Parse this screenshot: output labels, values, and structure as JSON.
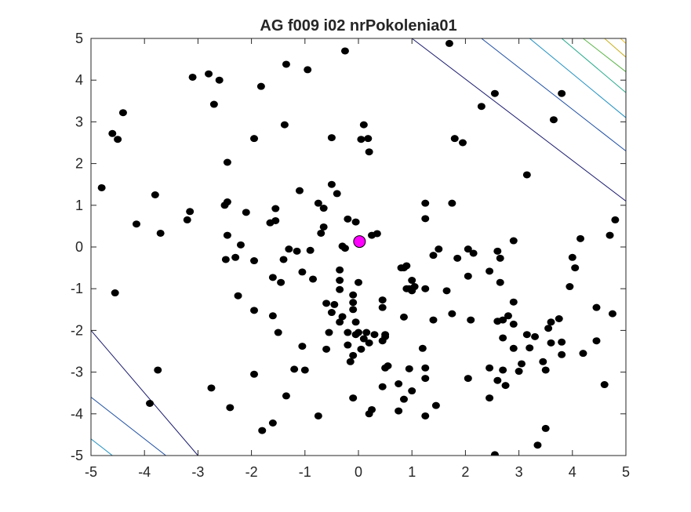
{
  "chart_data": {
    "type": "scatter",
    "title": "AG f009 i02 nrPokolenia01",
    "xlabel": "",
    "ylabel": "",
    "xlim": [
      -5,
      5
    ],
    "ylim": [
      -5,
      5
    ],
    "x_ticks": [
      "-5",
      "-4",
      "-3",
      "-2",
      "-1",
      "0",
      "1",
      "2",
      "3",
      "4",
      "5"
    ],
    "y_ticks": [
      "-5",
      "-4",
      "-3",
      "-2",
      "-1",
      "0",
      "1",
      "2",
      "3",
      "4",
      "5"
    ],
    "grid": false,
    "colors": {
      "population": "#000000",
      "best": "#ff00ff",
      "contours": [
        "#1a1a6e",
        "#1f4fa3",
        "#1f8fc0",
        "#27a98a",
        "#5cb54a",
        "#c9b020",
        "#f0c020"
      ]
    },
    "contour_levels": [
      {
        "color": "#1a1a6e",
        "segments": [
          [
            [
              -5,
              -2
            ],
            [
              -3,
              -5
            ]
          ],
          [
            [
              1,
              5
            ],
            [
              5,
              1.1
            ]
          ]
        ]
      },
      {
        "color": "#1f4fa3",
        "segments": [
          [
            [
              -5,
              -3.6
            ],
            [
              -3.4,
              -5.2
            ]
          ],
          [
            [
              2.3,
              5
            ],
            [
              5,
              2.3
            ]
          ]
        ]
      },
      {
        "color": "#1f8fc0",
        "segments": [
          [
            [
              -5,
              -4.6
            ],
            [
              -4.4,
              -5.2
            ]
          ],
          [
            [
              3.2,
              5
            ],
            [
              5,
              3.1
            ]
          ]
        ]
      },
      {
        "color": "#27a98a",
        "segments": [
          [
            [
              3.8,
              5
            ],
            [
              5,
              3.7
            ]
          ]
        ]
      },
      {
        "color": "#5cb54a",
        "segments": [
          [
            [
              4.2,
              5
            ],
            [
              5,
              4.2
            ]
          ]
        ]
      },
      {
        "color": "#c9b020",
        "segments": [
          [
            [
              4.6,
              5
            ],
            [
              5,
              4.55
            ]
          ]
        ]
      },
      {
        "color": "#f0c020",
        "segments": [
          [
            [
              4.9,
              5
            ],
            [
              5,
              4.88
            ]
          ]
        ]
      }
    ],
    "best": {
      "x": 0.02,
      "y": 0.13
    },
    "points": [
      [
        -4.6,
        2.72
      ],
      [
        -4.4,
        3.22
      ],
      [
        -4.5,
        2.58
      ],
      [
        -4.8,
        1.42
      ],
      [
        -4.15,
        0.55
      ],
      [
        -4.55,
        -1.1
      ],
      [
        -3.8,
        1.25
      ],
      [
        -3.7,
        0.33
      ],
      [
        -3.75,
        -2.95
      ],
      [
        -3.9,
        -3.75
      ],
      [
        -3.1,
        4.07
      ],
      [
        -2.8,
        4.15
      ],
      [
        -2.6,
        4.0
      ],
      [
        -2.7,
        3.42
      ],
      [
        -3.15,
        0.85
      ],
      [
        -3.2,
        0.65
      ],
      [
        -2.45,
        2.03
      ],
      [
        -2.45,
        1.08
      ],
      [
        -2.5,
        1.0
      ],
      [
        -2.45,
        0.28
      ],
      [
        -2.2,
        0.05
      ],
      [
        -2.48,
        -0.3
      ],
      [
        -2.3,
        -0.25
      ],
      [
        -2.25,
        -1.17
      ],
      [
        -2.75,
        -3.38
      ],
      [
        -2.4,
        -3.85
      ],
      [
        -1.95,
        2.6
      ],
      [
        -1.82,
        3.85
      ],
      [
        -1.35,
        4.38
      ],
      [
        -0.95,
        4.25
      ],
      [
        -0.25,
        4.7
      ],
      [
        -1.38,
        2.93
      ],
      [
        -2.1,
        0.83
      ],
      [
        -1.55,
        0.92
      ],
      [
        -1.55,
        0.63
      ],
      [
        -1.65,
        0.58
      ],
      [
        -1.95,
        -0.33
      ],
      [
        -1.3,
        -0.05
      ],
      [
        -1.4,
        -0.3
      ],
      [
        -1.15,
        -0.1
      ],
      [
        -0.9,
        -0.08
      ],
      [
        -1.05,
        -0.6
      ],
      [
        -1.6,
        -0.73
      ],
      [
        -1.45,
        -0.85
      ],
      [
        -0.85,
        -0.77
      ],
      [
        -1.95,
        -1.52
      ],
      [
        -1.6,
        -1.65
      ],
      [
        -1.5,
        -2.05
      ],
      [
        -1.05,
        -2.38
      ],
      [
        -1.2,
        -2.93
      ],
      [
        -1.0,
        -2.95
      ],
      [
        -1.95,
        -3.05
      ],
      [
        -1.35,
        -3.57
      ],
      [
        -1.6,
        -4.22
      ],
      [
        -1.8,
        -4.4
      ],
      [
        -0.75,
        -4.05
      ],
      [
        -1.1,
        1.35
      ],
      [
        -0.5,
        1.5
      ],
      [
        -0.4,
        1.28
      ],
      [
        -0.75,
        1.05
      ],
      [
        -0.65,
        0.93
      ],
      [
        -0.65,
        0.48
      ],
      [
        -0.7,
        0.33
      ],
      [
        -0.2,
        0.67
      ],
      [
        -0.3,
        0.02
      ],
      [
        -0.25,
        -0.03
      ],
      [
        -0.35,
        -0.55
      ],
      [
        -0.35,
        -0.8
      ],
      [
        -0.35,
        -1.02
      ],
      [
        -0.6,
        -1.35
      ],
      [
        -0.45,
        -1.38
      ],
      [
        -0.5,
        -1.57
      ],
      [
        -0.35,
        -1.8
      ],
      [
        -0.3,
        -1.67
      ],
      [
        -0.1,
        -1.33
      ],
      [
        -0.1,
        -1.15
      ],
      [
        -0.1,
        -1.5
      ],
      [
        -0.05,
        -1.8
      ],
      [
        -0.05,
        -2.1
      ],
      [
        -0.55,
        -2.05
      ],
      [
        -0.6,
        -2.45
      ],
      [
        -0.2,
        -2.05
      ],
      [
        0.0,
        -2.05
      ],
      [
        0.15,
        -2.05
      ],
      [
        0.1,
        -2.2
      ],
      [
        0.2,
        -2.3
      ],
      [
        0.3,
        -2.1
      ],
      [
        0.45,
        -2.25
      ],
      [
        0.5,
        -2.1
      ],
      [
        0.05,
        -2.45
      ],
      [
        -0.1,
        -2.6
      ],
      [
        -0.15,
        -2.75
      ],
      [
        0.0,
        -0.85
      ],
      [
        -0.5,
        2.62
      ],
      [
        0.1,
        2.93
      ],
      [
        0.05,
        2.58
      ],
      [
        0.18,
        2.6
      ],
      [
        0.2,
        2.28
      ],
      [
        -0.05,
        0.6
      ],
      [
        0.25,
        0.28
      ],
      [
        0.35,
        0.32
      ],
      [
        0.45,
        -1.27
      ],
      [
        0.45,
        -1.45
      ],
      [
        0.55,
        -2.85
      ],
      [
        0.5,
        -2.9
      ],
      [
        0.45,
        -3.35
      ],
      [
        0.25,
        -3.9
      ],
      [
        0.2,
        -4.0
      ],
      [
        -0.1,
        -3.62
      ],
      [
        0.8,
        -0.5
      ],
      [
        0.9,
        -0.45
      ],
      [
        1.0,
        -0.8
      ],
      [
        0.95,
        -1.0
      ],
      [
        1.0,
        -1.05
      ],
      [
        0.9,
        -1.0
      ],
      [
        1.05,
        -0.95
      ],
      [
        0.85,
        -0.5
      ],
      [
        0.85,
        -1.68
      ],
      [
        0.75,
        -3.28
      ],
      [
        0.95,
        -2.92
      ],
      [
        0.85,
        -3.65
      ],
      [
        0.75,
        -3.93
      ],
      [
        1.0,
        -3.45
      ],
      [
        1.2,
        -2.43
      ],
      [
        1.25,
        -2.9
      ],
      [
        1.25,
        -3.15
      ],
      [
        1.25,
        -4.05
      ],
      [
        1.45,
        -3.8
      ],
      [
        1.25,
        -1.0
      ],
      [
        1.5,
        -0.05
      ],
      [
        1.4,
        -0.2
      ],
      [
        1.65,
        -1.05
      ],
      [
        1.4,
        -1.75
      ],
      [
        1.25,
        1.05
      ],
      [
        1.25,
        0.68
      ],
      [
        1.75,
        1.05
      ],
      [
        1.75,
        -1.6
      ],
      [
        1.85,
        -0.27
      ],
      [
        2.05,
        -0.05
      ],
      [
        2.15,
        -0.15
      ],
      [
        2.05,
        -0.7
      ],
      [
        2.1,
        -1.75
      ],
      [
        2.05,
        -3.15
      ],
      [
        1.7,
        4.88
      ],
      [
        1.8,
        2.6
      ],
      [
        1.95,
        2.5
      ],
      [
        2.3,
        3.37
      ],
      [
        2.55,
        3.68
      ],
      [
        2.45,
        -0.58
      ],
      [
        2.6,
        -0.1
      ],
      [
        2.65,
        -0.27
      ],
      [
        2.65,
        -0.85
      ],
      [
        2.6,
        -1.78
      ],
      [
        2.7,
        -1.75
      ],
      [
        2.7,
        -2.18
      ],
      [
        2.45,
        -2.9
      ],
      [
        2.6,
        -3.2
      ],
      [
        2.7,
        -2.95
      ],
      [
        2.45,
        -3.62
      ],
      [
        2.55,
        -4.98
      ],
      [
        2.9,
        0.15
      ],
      [
        2.9,
        -1.32
      ],
      [
        2.8,
        -1.65
      ],
      [
        2.9,
        -1.85
      ],
      [
        2.9,
        -2.43
      ],
      [
        3.05,
        -2.8
      ],
      [
        3.0,
        -2.98
      ],
      [
        2.75,
        -3.32
      ],
      [
        3.15,
        1.73
      ],
      [
        3.15,
        -2.1
      ],
      [
        3.3,
        -2.15
      ],
      [
        3.2,
        -2.42
      ],
      [
        3.45,
        -2.75
      ],
      [
        3.5,
        -2.95
      ],
      [
        3.35,
        -4.75
      ],
      [
        3.5,
        -4.35
      ],
      [
        3.65,
        3.05
      ],
      [
        3.8,
        3.68
      ],
      [
        3.6,
        -1.8
      ],
      [
        3.55,
        -1.95
      ],
      [
        3.6,
        -2.3
      ],
      [
        3.75,
        -1.72
      ],
      [
        3.8,
        -2.28
      ],
      [
        3.8,
        -2.58
      ],
      [
        3.95,
        -0.95
      ],
      [
        4.0,
        -0.25
      ],
      [
        4.05,
        -0.5
      ],
      [
        4.15,
        0.2
      ],
      [
        4.2,
        -2.55
      ],
      [
        4.45,
        -1.45
      ],
      [
        4.45,
        -2.25
      ],
      [
        4.6,
        -3.3
      ],
      [
        4.7,
        0.28
      ],
      [
        4.8,
        0.65
      ],
      [
        4.75,
        -1.6
      ],
      [
        0.5,
        -2.15
      ],
      [
        -0.2,
        -2.35
      ]
    ]
  }
}
